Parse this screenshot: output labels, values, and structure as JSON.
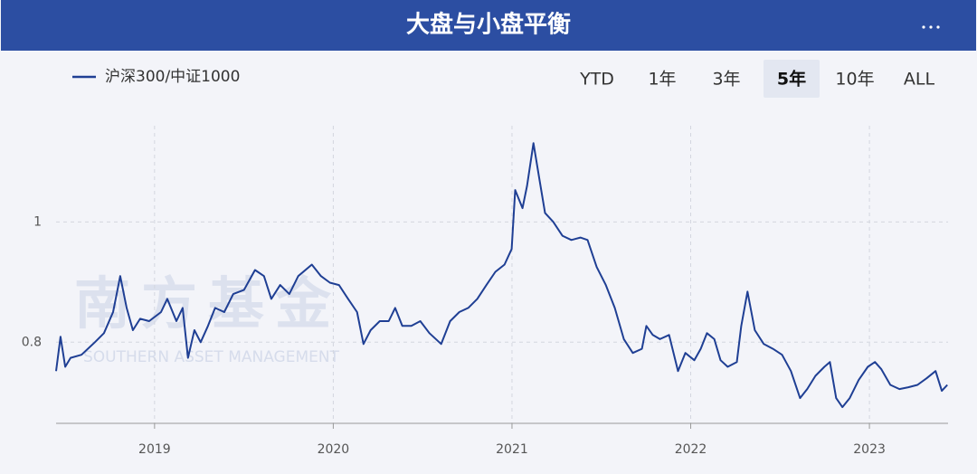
{
  "chart_data": {
    "type": "line",
    "title": "大盘与小盘平衡",
    "range_buttons": [
      "YTD",
      "1年",
      "3年",
      "5年",
      "10年",
      "ALL"
    ],
    "selected_range_index": 3,
    "watermark": {
      "title": "南方基金",
      "subtitle": "SOUTHERN ASSET MANAGEMENT"
    },
    "grid": true,
    "xlim": [
      2018.449,
      2023.44
    ],
    "xticks": [
      2019,
      2020,
      2021,
      2022,
      2023
    ],
    "ylim": [
      0.665,
      1.16
    ],
    "yticks": [
      0.8,
      1
    ],
    "x": [
      2018.449,
      2018.474,
      2018.5,
      2018.53,
      2018.591,
      2018.666,
      2018.717,
      2018.768,
      2018.808,
      2018.844,
      2018.879,
      2018.919,
      2018.97,
      2019.036,
      2019.071,
      2019.122,
      2019.157,
      2019.187,
      2019.223,
      2019.258,
      2019.299,
      2019.339,
      2019.39,
      2019.44,
      2019.501,
      2019.562,
      2019.612,
      2019.653,
      2019.703,
      2019.754,
      2019.804,
      2019.88,
      2019.931,
      2019.981,
      2020.032,
      2020.083,
      2020.133,
      2020.169,
      2020.209,
      2020.26,
      2020.31,
      2020.346,
      2020.386,
      2020.437,
      2020.487,
      2020.538,
      2020.604,
      2020.654,
      2020.705,
      2020.755,
      2020.806,
      2020.857,
      2020.907,
      2020.958,
      2020.998,
      2021.018,
      2021.059,
      2021.084,
      2021.12,
      2021.155,
      2021.185,
      2021.231,
      2021.282,
      2021.332,
      2021.383,
      2021.423,
      2021.474,
      2021.525,
      2021.575,
      2021.626,
      2021.676,
      2021.727,
      2021.752,
      2021.788,
      2021.828,
      2021.879,
      2021.929,
      2021.97,
      2022.02,
      2022.056,
      2022.091,
      2022.132,
      2022.167,
      2022.207,
      2022.258,
      2022.283,
      2022.318,
      2022.359,
      2022.409,
      2022.46,
      2022.511,
      2022.561,
      2022.612,
      2022.652,
      2022.698,
      2022.748,
      2022.779,
      2022.814,
      2022.849,
      2022.89,
      2022.94,
      2022.991,
      2023.031,
      2023.067,
      2023.117,
      2023.168,
      2023.218,
      2023.269,
      2023.32,
      2023.37,
      2023.405,
      2023.436
    ],
    "series": [
      {
        "name": "沪深300/中证1000",
        "color": "#1f3f94",
        "values": [
          0.752,
          0.809,
          0.759,
          0.774,
          0.779,
          0.8,
          0.815,
          0.85,
          0.91,
          0.857,
          0.82,
          0.839,
          0.835,
          0.85,
          0.872,
          0.835,
          0.857,
          0.774,
          0.82,
          0.8,
          0.827,
          0.857,
          0.85,
          0.88,
          0.887,
          0.92,
          0.91,
          0.872,
          0.895,
          0.88,
          0.91,
          0.929,
          0.91,
          0.899,
          0.895,
          0.872,
          0.85,
          0.797,
          0.82,
          0.835,
          0.835,
          0.857,
          0.827,
          0.827,
          0.835,
          0.815,
          0.797,
          0.835,
          0.85,
          0.857,
          0.872,
          0.895,
          0.917,
          0.929,
          0.955,
          1.053,
          1.023,
          1.06,
          1.131,
          1.068,
          1.015,
          1.0,
          0.977,
          0.97,
          0.974,
          0.97,
          0.925,
          0.895,
          0.857,
          0.805,
          0.782,
          0.789,
          0.827,
          0.812,
          0.805,
          0.812,
          0.752,
          0.782,
          0.77,
          0.789,
          0.815,
          0.805,
          0.77,
          0.759,
          0.767,
          0.827,
          0.884,
          0.82,
          0.797,
          0.789,
          0.779,
          0.752,
          0.707,
          0.722,
          0.744,
          0.759,
          0.767,
          0.707,
          0.692,
          0.707,
          0.737,
          0.759,
          0.767,
          0.755,
          0.729,
          0.722,
          0.725,
          0.729,
          0.74,
          0.752,
          0.719,
          0.729
        ]
      }
    ]
  }
}
